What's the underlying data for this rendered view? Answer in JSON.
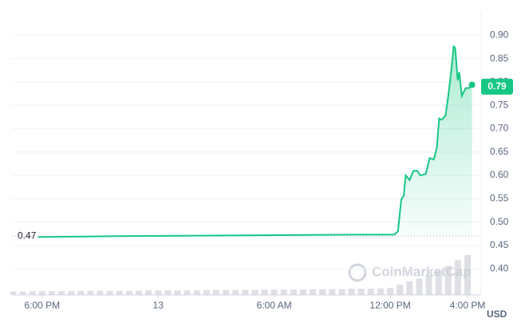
{
  "chart_data": {
    "type": "line",
    "x": [
      -6.21,
      -2.0,
      2.1,
      6.2,
      10.3,
      12.2,
      12.4,
      12.57,
      12.7,
      12.8,
      13.0,
      13.2,
      13.4,
      13.55,
      13.84,
      14.04,
      14.25,
      14.41,
      14.53,
      14.66,
      14.86,
      14.99,
      15.15,
      15.28,
      15.36,
      15.49,
      15.57,
      15.7,
      15.9,
      16.07,
      16.23
    ],
    "series": [
      {
        "color": "#16c784",
        "values": [
          0.468,
          0.47,
          0.471,
          0.472,
          0.473,
          0.473,
          0.48,
          0.548,
          0.557,
          0.6,
          0.59,
          0.61,
          0.61,
          0.6,
          0.603,
          0.637,
          0.634,
          0.659,
          0.722,
          0.719,
          0.728,
          0.767,
          0.821,
          0.876,
          0.873,
          0.804,
          0.821,
          0.77,
          0.787,
          0.787,
          0.794
        ]
      }
    ],
    "xlim": [
      -7.56,
      16.7
    ],
    "xticks": [
      {
        "value": -6,
        "label": "6:00 PM"
      },
      {
        "value": 0,
        "label": "13"
      },
      {
        "value": 6,
        "label": "6:00 AM"
      },
      {
        "value": 12,
        "label": "12:00 PM"
      },
      {
        "value": 16,
        "label": "4:00 PM"
      }
    ],
    "ylim": [
      0.344,
      0.95
    ],
    "yticks": [
      {
        "value": 0.4,
        "label": "0.40"
      },
      0.45,
      {
        "value": 0.5,
        "label": "0.50"
      },
      0.55,
      {
        "value": 0.6,
        "label": "0.60"
      },
      0.65,
      {
        "value": 0.7,
        "label": "0.70"
      },
      0.75,
      {
        "value": 0.8,
        "label": "0.80"
      },
      0.85,
      {
        "value": 0.9,
        "label": "0.90"
      }
    ],
    "grid": true,
    "open_price": 0.47,
    "price_tag": 0.79,
    "currency": "USD",
    "watermark": "CoinMarketCap",
    "volume": {
      "color": "#c9ccd3",
      "ylim": [
        0,
        100
      ],
      "x": [
        -7.5,
        -7,
        -6.5,
        -6,
        -5.5,
        -5,
        -4.5,
        -4,
        -3.5,
        -3,
        -2.5,
        -2,
        -1.5,
        -1,
        -0.5,
        0,
        0.5,
        1,
        1.5,
        2,
        2.5,
        3,
        3.5,
        4,
        4.5,
        5,
        5.5,
        6,
        6.5,
        7,
        7.5,
        8,
        8.5,
        9,
        9.5,
        10,
        10.5,
        11,
        11.5,
        12,
        12.5,
        13,
        13.5,
        14,
        14.5,
        15,
        15.5,
        16
      ],
      "values": [
        8,
        8,
        9,
        9,
        9,
        9,
        9,
        10,
        10,
        10,
        10,
        10,
        10,
        10,
        11,
        11,
        11,
        11,
        11,
        11,
        12,
        12,
        12,
        12,
        12,
        12,
        13,
        13,
        13,
        13,
        13,
        14,
        14,
        14,
        14,
        15,
        15,
        15,
        16,
        17,
        25,
        33,
        40,
        48,
        58,
        70,
        84,
        96
      ]
    }
  }
}
